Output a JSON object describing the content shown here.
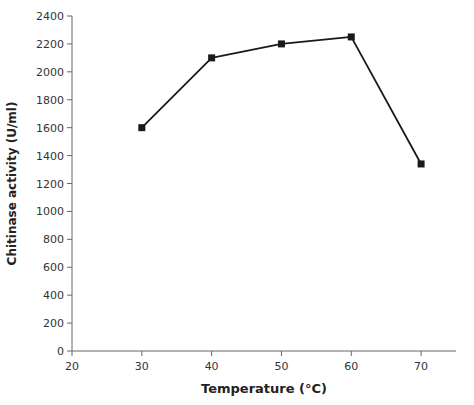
{
  "chart_data": {
    "type": "line",
    "xlabel": "Temperature (°C)",
    "ylabel": "Chitinase activity (U/ml)",
    "x": [
      30,
      40,
      50,
      60,
      70
    ],
    "values": [
      1600,
      2100,
      2200,
      2250,
      1340
    ],
    "xlim": [
      20,
      75
    ],
    "ylim": [
      0,
      2400
    ],
    "xticks": [
      20,
      30,
      40,
      50,
      60,
      70
    ],
    "yticks": [
      0,
      200,
      400,
      600,
      800,
      1000,
      1200,
      1400,
      1600,
      1800,
      2000,
      2200,
      2400
    ],
    "color": "#1a1a1a",
    "marker": "square",
    "grid": false
  }
}
